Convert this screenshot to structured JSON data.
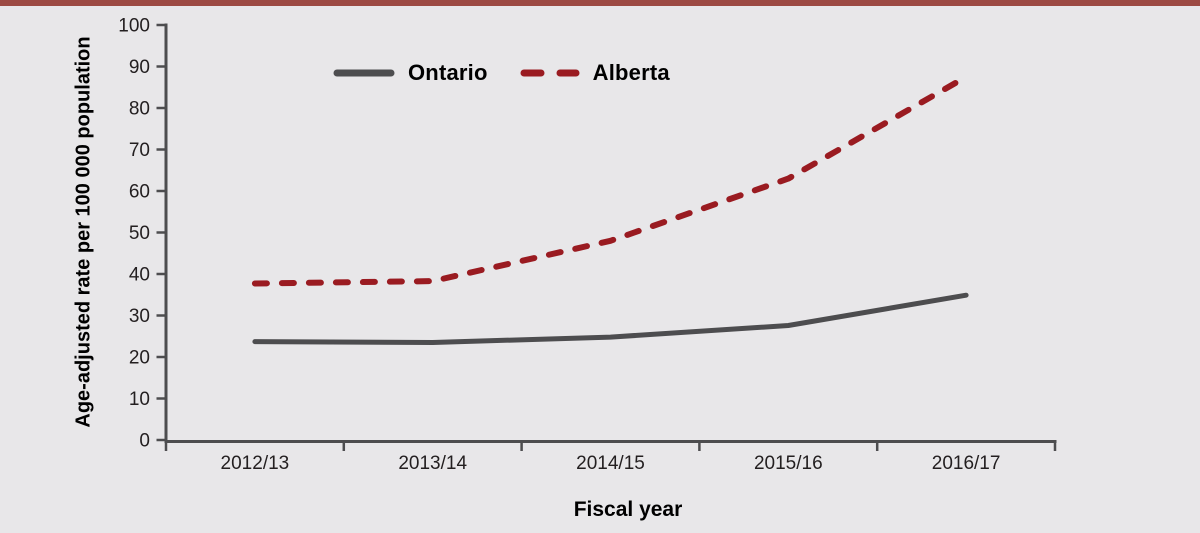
{
  "page": {
    "background_color": "#e8e7e9",
    "accent_bar_color": "#9c4a43"
  },
  "chart_data": {
    "type": "line",
    "title": "",
    "xlabel": "Fiscal year",
    "ylabel": "Age-adjusted rate per 100 000 population",
    "categories": [
      "2012/13",
      "2013/14",
      "2014/15",
      "2015/16",
      "2016/17"
    ],
    "series": [
      {
        "name": "Ontario",
        "color": "#4d4d4f",
        "line_style": "solid",
        "values": [
          23.7,
          23.5,
          24.8,
          27.6,
          34.9
        ]
      },
      {
        "name": "Alberta",
        "color": "#9a1b21",
        "line_style": "dashed",
        "values": [
          37.7,
          38.3,
          48.0,
          63.0,
          87.5
        ]
      }
    ],
    "ylim": [
      0,
      100
    ],
    "yticks": [
      0,
      10,
      20,
      30,
      40,
      50,
      60,
      70,
      80,
      90,
      100
    ],
    "grid": false,
    "legend_position": "top-inside-left",
    "axis_color": "#4d4d4f",
    "text_color": "#231f20"
  }
}
